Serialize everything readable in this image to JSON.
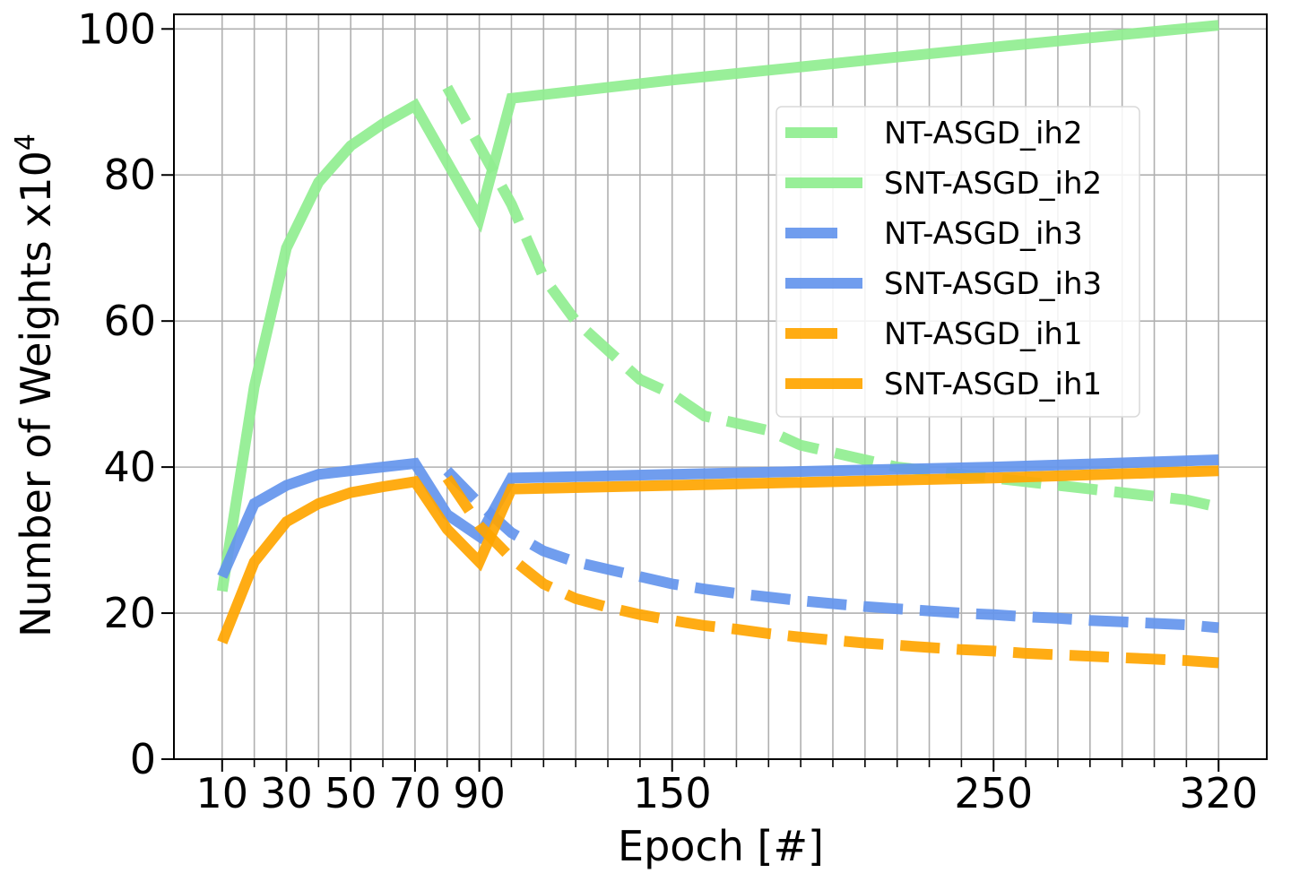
{
  "chart_data": {
    "type": "line",
    "title": "",
    "xlabel": "Epoch [#]",
    "ylabel": "Number of Weights x10",
    "ylabel_exponent": "4",
    "xlim": [
      -5,
      335
    ],
    "ylim": [
      0,
      102
    ],
    "x_ticks": [
      10,
      30,
      50,
      70,
      90,
      150,
      250,
      320
    ],
    "x_tick_labels": [
      "10",
      "30",
      "50",
      "70",
      "90",
      "150",
      "250",
      "320"
    ],
    "x_gridlines": [
      10,
      20,
      30,
      40,
      50,
      60,
      70,
      80,
      90,
      100,
      110,
      120,
      130,
      140,
      150,
      160,
      170,
      180,
      190,
      200,
      210,
      220,
      230,
      240,
      250,
      260,
      270,
      280,
      290,
      300,
      310,
      320
    ],
    "y_ticks": [
      0,
      20,
      40,
      60,
      80,
      100
    ],
    "y_tick_labels": [
      "0",
      "20",
      "40",
      "60",
      "80",
      "100"
    ],
    "grid": true,
    "legend_position": "upper-right",
    "series": [
      {
        "name": "NT-ASGD_ih2",
        "style": "dashed",
        "color": "#90EE90",
        "x": [
          80,
          90,
          100,
          110,
          120,
          130,
          140,
          150,
          160,
          170,
          180,
          190,
          200,
          210,
          220,
          230,
          240,
          250,
          260,
          270,
          280,
          290,
          300,
          310,
          320
        ],
        "y": [
          92,
          84,
          76,
          66,
          60,
          56,
          52,
          50,
          47,
          46,
          45,
          43,
          42,
          41,
          40,
          39.5,
          39,
          38.5,
          38,
          37.5,
          37,
          36.5,
          36,
          35.5,
          34.5
        ]
      },
      {
        "name": "SNT-ASGD_ih2",
        "style": "solid",
        "color": "#90EE90",
        "x": [
          10,
          20,
          30,
          40,
          50,
          60,
          70,
          90,
          100,
          150,
          250,
          320
        ],
        "y": [
          23,
          51,
          70,
          79,
          84,
          87,
          89.5,
          74,
          90.5,
          93,
          97.5,
          100.5
        ]
      },
      {
        "name": "NT-ASGD_ih3",
        "style": "dashed",
        "color": "#6495ED",
        "x": [
          80,
          90,
          100,
          110,
          120,
          130,
          140,
          150,
          160,
          170,
          180,
          190,
          200,
          210,
          220,
          230,
          240,
          250,
          260,
          270,
          280,
          290,
          300,
          310,
          320
        ],
        "y": [
          39.5,
          35,
          31,
          28.5,
          27,
          26,
          25,
          24,
          23.3,
          22.7,
          22.2,
          21.7,
          21.3,
          20.9,
          20.6,
          20.3,
          20,
          19.8,
          19.5,
          19.3,
          19,
          18.8,
          18.6,
          18.4,
          18
        ]
      },
      {
        "name": "SNT-ASGD_ih3",
        "style": "solid",
        "color": "#6495ED",
        "x": [
          10,
          20,
          30,
          40,
          50,
          60,
          70,
          80,
          90,
          100,
          150,
          250,
          320
        ],
        "y": [
          25,
          35,
          37.5,
          39,
          39.5,
          40,
          40.5,
          33.5,
          30.5,
          38.5,
          39,
          40,
          41
        ]
      },
      {
        "name": "NT-ASGD_ih1",
        "style": "dashed",
        "color": "#FFA500",
        "x": [
          80,
          90,
          100,
          110,
          120,
          130,
          140,
          150,
          160,
          170,
          180,
          190,
          200,
          210,
          220,
          230,
          240,
          250,
          260,
          270,
          280,
          290,
          300,
          310,
          320
        ],
        "y": [
          38.5,
          32,
          27.5,
          24,
          22,
          20.8,
          19.8,
          19,
          18.3,
          17.8,
          17.2,
          16.7,
          16.3,
          15.9,
          15.6,
          15.3,
          15,
          14.8,
          14.5,
          14.3,
          14.1,
          13.9,
          13.7,
          13.5,
          13.2
        ]
      },
      {
        "name": "SNT-ASGD_ih1",
        "style": "solid",
        "color": "#FFA500",
        "x": [
          10,
          20,
          30,
          40,
          50,
          60,
          70,
          80,
          90,
          100,
          150,
          250,
          320
        ],
        "y": [
          16,
          27,
          32.5,
          35,
          36.5,
          37.3,
          38,
          31.5,
          27,
          37,
          37.5,
          38.5,
          39.5
        ]
      }
    ]
  }
}
